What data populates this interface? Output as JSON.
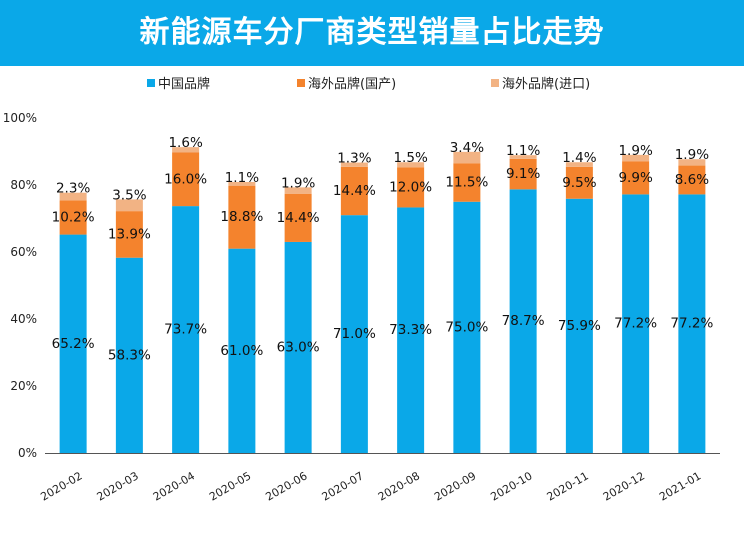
{
  "title": "新能源车分厂商类型销量占比走势",
  "colors": {
    "header_bg": "#0aa8e8",
    "china": "#0aa8e8",
    "overseas_domestic": "#f4832d",
    "overseas_import": "#f2b384"
  },
  "chart_data": {
    "type": "bar",
    "stacked": true,
    "categories": [
      "2020-02",
      "2020-03",
      "2020-04",
      "2020-05",
      "2020-06",
      "2020-07",
      "2020-08",
      "2020-09",
      "2020-10",
      "2020-11",
      "2020-12",
      "2021-01"
    ],
    "series": [
      {
        "name": "中国品牌",
        "color": "#0aa8e8",
        "values": [
          65.2,
          58.3,
          73.7,
          61.0,
          63.0,
          71.0,
          73.3,
          75.0,
          78.7,
          75.9,
          77.2,
          77.2
        ]
      },
      {
        "name": "海外品牌(国产)",
        "color": "#f4832d",
        "values": [
          10.2,
          13.9,
          16.0,
          18.8,
          14.4,
          14.4,
          12.0,
          11.5,
          9.1,
          9.5,
          9.9,
          8.6
        ]
      },
      {
        "name": "海外品牌(进口)",
        "color": "#f2b384",
        "values": [
          2.3,
          3.5,
          1.6,
          1.1,
          1.9,
          1.3,
          1.5,
          3.4,
          1.1,
          1.4,
          1.9,
          1.9
        ]
      }
    ],
    "labels": [
      [
        "65.2%",
        "58.3%",
        "73.7%",
        "61.0%",
        "63.0%",
        "71.0%",
        "73.3%",
        "75.0%",
        "78.7%",
        "75.9%",
        "77.2%",
        "77.2%"
      ],
      [
        "10.2%",
        "13.9%",
        "16.0%",
        "18.8%",
        "14.4%",
        "14.4%",
        "12.0%",
        "11.5%",
        "9.1%",
        "9.5%",
        "9.9%",
        "8.6%"
      ],
      [
        "2.3%",
        "3.5%",
        "1.6%",
        "1.1%",
        "1.9%",
        "1.3%",
        "1.5%",
        "3.4%",
        "1.1%",
        "1.4%",
        "1.9%",
        "1.9%"
      ]
    ],
    "yticks": [
      "0%",
      "20%",
      "40%",
      "60%",
      "80%",
      "100%"
    ],
    "ylim": [
      0,
      100
    ],
    "legend_position": "top-center",
    "grid": false
  }
}
